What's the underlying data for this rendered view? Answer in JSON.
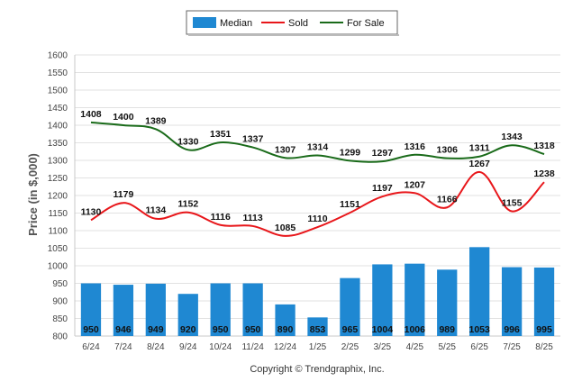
{
  "chart_data": {
    "type": "bar",
    "categories": [
      "6/24",
      "7/24",
      "8/24",
      "9/24",
      "10/24",
      "11/24",
      "12/24",
      "1/25",
      "2/25",
      "3/25",
      "4/25",
      "5/25",
      "6/25",
      "7/25",
      "8/25"
    ],
    "series": [
      {
        "name": "Median",
        "type": "bar",
        "color": "#1f88d2",
        "values": [
          950,
          946,
          949,
          920,
          950,
          950,
          890,
          853,
          965,
          1004,
          1006,
          989,
          1053,
          996,
          995
        ]
      },
      {
        "name": "Sold",
        "type": "line",
        "color": "#e8161a",
        "values": [
          1130,
          1179,
          1134,
          1152,
          1116,
          1113,
          1085,
          1110,
          1151,
          1197,
          1207,
          1166,
          1267,
          1155,
          1238
        ]
      },
      {
        "name": "For Sale",
        "type": "line",
        "color": "#1a6b1a",
        "values": [
          1408,
          1400,
          1389,
          1330,
          1351,
          1337,
          1307,
          1314,
          1299,
          1297,
          1316,
          1306,
          1311,
          1343,
          1318
        ]
      }
    ],
    "ylabel": "Price (in $,000)",
    "xlabel": "",
    "ylim": [
      800,
      1600
    ],
    "yticks": [
      800,
      850,
      900,
      950,
      1000,
      1050,
      1100,
      1150,
      1200,
      1250,
      1300,
      1350,
      1400,
      1450,
      1500,
      1550,
      1600
    ],
    "grid": true,
    "legend_position": "top-center"
  },
  "footer": {
    "copyright": "Copyright © Trendgraphix, Inc."
  }
}
